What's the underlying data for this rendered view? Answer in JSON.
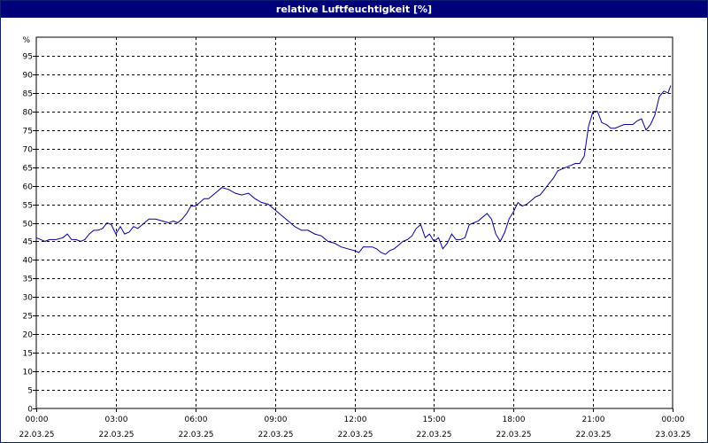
{
  "window": {
    "title": "relative Luftfeuchtigkeit [%]"
  },
  "chart_data": {
    "type": "line",
    "title": "relative Luftfeuchtigkeit [%]",
    "y_unit_label": "%",
    "ylim": [
      0,
      100
    ],
    "y_ticks": [
      0,
      5,
      10,
      15,
      20,
      25,
      30,
      35,
      40,
      45,
      50,
      55,
      60,
      65,
      70,
      75,
      80,
      85,
      90,
      95
    ],
    "xlim_hours": [
      0,
      24
    ],
    "x_ticks": [
      {
        "time": "00:00",
        "date": "22.03.25"
      },
      {
        "time": "03:00",
        "date": "22.03.25"
      },
      {
        "time": "06:00",
        "date": "22.03.25"
      },
      {
        "time": "09:00",
        "date": "22.03.25"
      },
      {
        "time": "12:00",
        "date": "22.03.25"
      },
      {
        "time": "15:00",
        "date": "22.03.25"
      },
      {
        "time": "18:00",
        "date": "22.03.25"
      },
      {
        "time": "21:00",
        "date": "22.03.25"
      },
      {
        "time": "00:00",
        "date": "23.03.25"
      }
    ],
    "grid": true,
    "series": [
      {
        "color": "#00008b",
        "x_hours": [
          0,
          0.17,
          0.33,
          0.5,
          0.75,
          1.0,
          1.17,
          1.33,
          1.5,
          1.67,
          1.83,
          2.0,
          2.17,
          2.33,
          2.5,
          2.67,
          2.83,
          3.0,
          3.17,
          3.33,
          3.5,
          3.67,
          3.83,
          4.0,
          4.25,
          4.5,
          4.75,
          5.0,
          5.17,
          5.33,
          5.5,
          5.67,
          5.83,
          6.0,
          6.17,
          6.33,
          6.5,
          6.75,
          7.0,
          7.25,
          7.5,
          7.75,
          8.0,
          8.25,
          8.5,
          8.75,
          9.0,
          9.25,
          9.5,
          9.75,
          10.0,
          10.25,
          10.5,
          10.75,
          11.0,
          11.25,
          11.5,
          11.75,
          12.0,
          12.17,
          12.33,
          12.5,
          12.67,
          12.83,
          13.0,
          13.17,
          13.33,
          13.5,
          13.67,
          13.83,
          14.0,
          14.17,
          14.33,
          14.5,
          14.67,
          14.83,
          15.0,
          15.17,
          15.33,
          15.5,
          15.67,
          15.83,
          16.0,
          16.17,
          16.33,
          16.5,
          16.67,
          16.83,
          17.0,
          17.17,
          17.33,
          17.5,
          17.67,
          17.83,
          18.0,
          18.17,
          18.33,
          18.5,
          18.67,
          18.83,
          19.0,
          19.17,
          19.33,
          19.5,
          19.67,
          19.83,
          20.0,
          20.17,
          20.33,
          20.5,
          20.67,
          20.83,
          21.0,
          21.17,
          21.33,
          21.5,
          21.67,
          21.83,
          22.0,
          22.17,
          22.33,
          22.5,
          22.67,
          22.83,
          23.0,
          23.17,
          23.33,
          23.5,
          23.67,
          23.83,
          23.93
        ],
        "values": [
          46,
          45.5,
          45,
          45.5,
          45.5,
          46,
          47,
          45.5,
          45.5,
          45,
          45.5,
          47,
          48,
          48,
          48.5,
          50,
          49.5,
          47,
          49,
          47,
          47.5,
          49,
          48.5,
          49.5,
          51,
          51,
          50.5,
          50,
          50.5,
          50,
          51,
          52.5,
          54.5,
          54.5,
          55.5,
          56.5,
          56.5,
          58,
          59.5,
          59,
          58,
          57.5,
          58,
          56.5,
          55.5,
          55,
          53.5,
          52,
          50.5,
          49,
          48,
          48,
          47,
          46.5,
          45,
          44.5,
          43.5,
          43,
          42.5,
          42,
          43.5,
          43.5,
          43.5,
          43,
          42,
          41.5,
          42.5,
          43,
          44,
          45,
          45.5,
          46.5,
          48.5,
          49.5,
          46,
          47,
          45,
          46,
          43,
          44.5,
          47,
          45.5,
          45.5,
          46,
          49.5,
          50,
          50.5,
          51.5,
          52.5,
          51,
          47,
          45,
          47.5,
          51,
          53,
          55.5,
          54.5,
          55,
          56,
          57,
          57.5,
          59,
          60.5,
          62,
          64,
          64.5,
          65,
          65.5,
          66,
          66,
          68,
          76,
          80,
          80,
          77,
          76.5,
          75.5,
          75.5,
          76,
          76.5,
          76.5,
          76.5,
          77.5,
          78,
          75,
          76.5,
          79,
          84,
          85.5,
          85,
          87
        ]
      }
    ]
  }
}
